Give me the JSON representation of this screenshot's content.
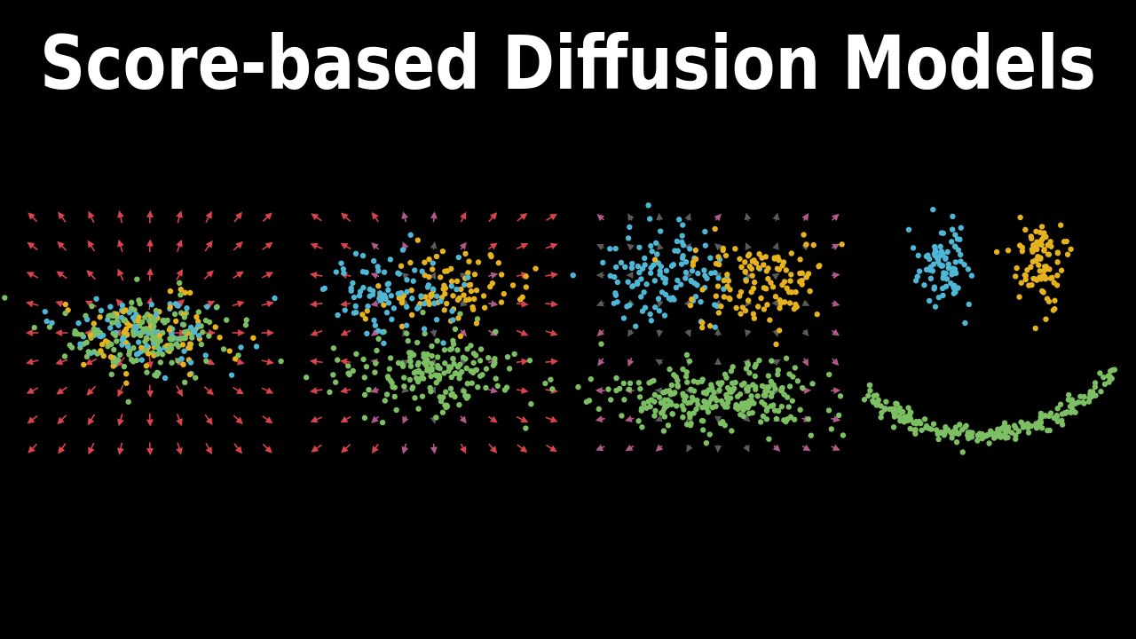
{
  "title": "Score-based Diffusion Models"
}
